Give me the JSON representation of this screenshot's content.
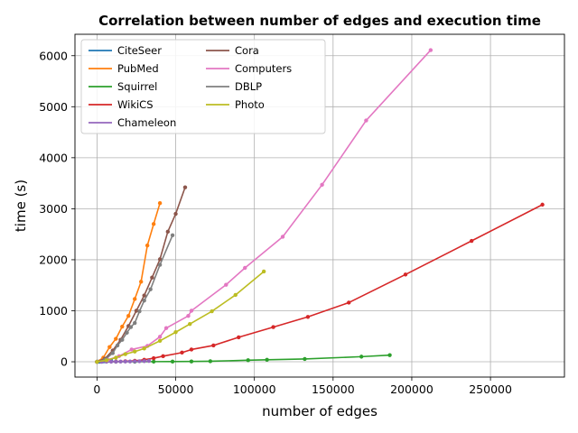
{
  "chart_data": {
    "type": "line",
    "title": "Correlation between number of edges and execution time",
    "xlabel": "number of edges",
    "ylabel": "time (s)",
    "xlim": [
      -14000,
      297000
    ],
    "ylim": [
      -300,
      6420
    ],
    "xticks": [
      0,
      50000,
      100000,
      150000,
      200000,
      250000
    ],
    "yticks": [
      0,
      1000,
      2000,
      3000,
      4000,
      5000,
      6000
    ],
    "xtick_labels": [
      "0",
      "50000",
      "100000",
      "150000",
      "200000",
      "250000"
    ],
    "ytick_labels": [
      "0",
      "1000",
      "2000",
      "3000",
      "4000",
      "5000",
      "6000"
    ],
    "grid": true,
    "legend_position": "top-left",
    "legend_columns": 2,
    "series": [
      {
        "name": "CiteSeer",
        "color": "#1f77b4",
        "x": [
          0,
          1000,
          2000,
          3000,
          4000,
          5000,
          6000,
          7000,
          8000,
          9000
        ],
        "y": [
          0,
          1,
          3,
          5,
          8,
          11,
          14,
          18,
          21,
          25
        ]
      },
      {
        "name": "PubMed",
        "color": "#ff7f0e",
        "x": [
          0,
          4000,
          8000,
          12000,
          16000,
          20000,
          24000,
          28000,
          32000,
          36000,
          40000
        ],
        "y": [
          0,
          80,
          290,
          450,
          690,
          900,
          1230,
          1570,
          2280,
          2700,
          3110
        ]
      },
      {
        "name": "Squirrel",
        "color": "#2ca02c",
        "x": [
          0,
          12000,
          24000,
          36000,
          48000,
          60000,
          72000,
          96000,
          108000,
          132000,
          168000,
          186000
        ],
        "y": [
          0,
          1,
          2,
          3,
          4,
          6,
          10,
          30,
          40,
          55,
          100,
          130
        ]
      },
      {
        "name": "WikiCS",
        "color": "#d62728",
        "x": [
          0,
          12000,
          18000,
          24000,
          30000,
          36000,
          42000,
          54000,
          60000,
          74000,
          90000,
          112000,
          134000,
          160000,
          196000,
          238000,
          283000
        ],
        "y": [
          0,
          5,
          10,
          20,
          40,
          70,
          110,
          180,
          240,
          320,
          480,
          680,
          880,
          1160,
          1710,
          2370,
          3080
        ]
      },
      {
        "name": "Chameleon",
        "color": "#9467bd",
        "x": [
          0,
          3000,
          6000,
          9000,
          12000,
          15000,
          18000,
          21000,
          24000,
          27000,
          30000,
          33000
        ],
        "y": [
          0,
          0,
          1,
          2,
          3,
          4,
          5,
          7,
          9,
          11,
          13,
          16
        ]
      },
      {
        "name": "Cora",
        "color": "#8c564b",
        "x": [
          0,
          5000,
          10000,
          15000,
          20000,
          25000,
          30000,
          35000,
          40000,
          45000,
          50000,
          56000
        ],
        "y": [
          0,
          60,
          220,
          430,
          700,
          1000,
          1300,
          1650,
          2010,
          2550,
          2900,
          3420
        ]
      },
      {
        "name": "Computers",
        "color": "#e377c2",
        "x": [
          0,
          7000,
          14000,
          22000,
          32000,
          40000,
          44000,
          58000,
          60000,
          82000,
          94000,
          118000,
          143000,
          171000,
          212000
        ],
        "y": [
          0,
          40,
          110,
          240,
          310,
          490,
          660,
          900,
          1000,
          1510,
          1840,
          2450,
          3470,
          4730,
          6110
        ]
      },
      {
        "name": "DBLP",
        "color": "#7f7f7f",
        "x": [
          0,
          5000,
          10000,
          13000,
          16000,
          19000,
          21500,
          24000,
          27000,
          30000,
          34000,
          40000,
          48000
        ],
        "y": [
          0,
          40,
          170,
          320,
          430,
          570,
          680,
          760,
          990,
          1200,
          1420,
          1900,
          2480
        ]
      },
      {
        "name": "Photo",
        "color": "#bcbd22",
        "x": [
          0,
          6000,
          12000,
          18000,
          24000,
          30000,
          40000,
          50000,
          59000,
          73000,
          88000,
          106000
        ],
        "y": [
          0,
          30,
          80,
          150,
          200,
          260,
          410,
          580,
          740,
          990,
          1310,
          1770
        ]
      }
    ]
  }
}
